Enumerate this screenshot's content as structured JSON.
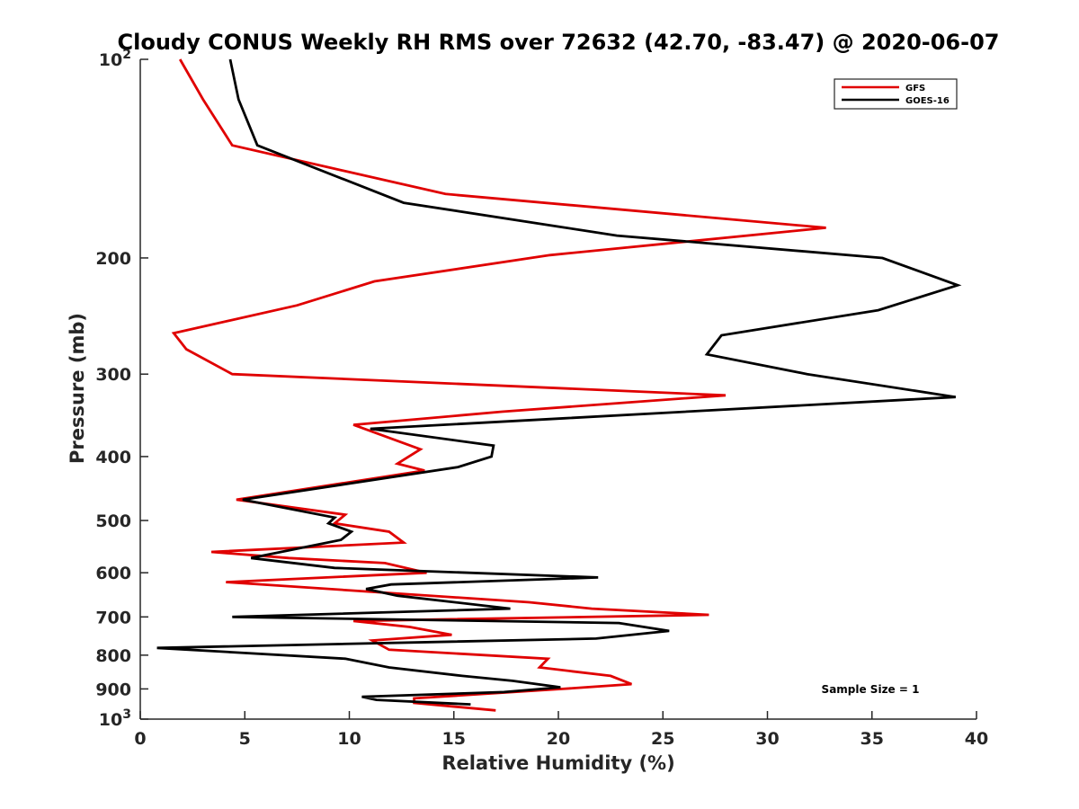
{
  "chart_data": {
    "type": "line",
    "title": "Cloudy CONUS Weekly RH RMS over 72632 (42.70, -83.47) @ 2020-06-07",
    "xlabel": "Relative Humidity (%)",
    "ylabel": "Pressure (mb)",
    "xlim": [
      0,
      40
    ],
    "ylim": [
      100,
      1000
    ],
    "yscale": "log",
    "y_reversed": true,
    "xticks": [
      0,
      5,
      10,
      15,
      20,
      25,
      30,
      35,
      40
    ],
    "yticks": [
      {
        "value": 100,
        "label": "10",
        "sup": "2"
      },
      {
        "value": 200,
        "label": "200",
        "sup": ""
      },
      {
        "value": 300,
        "label": "300",
        "sup": ""
      },
      {
        "value": 400,
        "label": "400",
        "sup": ""
      },
      {
        "value": 500,
        "label": "500",
        "sup": ""
      },
      {
        "value": 600,
        "label": "600",
        "sup": ""
      },
      {
        "value": 700,
        "label": "700",
        "sup": ""
      },
      {
        "value": 800,
        "label": "800",
        "sup": ""
      },
      {
        "value": 900,
        "label": "900",
        "sup": ""
      },
      {
        "value": 1000,
        "label": "10",
        "sup": "3"
      }
    ],
    "legend_position": "top-right",
    "annotation": "Sample Size = 1",
    "series": [
      {
        "name": "GFS",
        "color": "#e00000",
        "points": [
          [
            1.9,
            100
          ],
          [
            3.0,
            115
          ],
          [
            4.4,
            135
          ],
          [
            14.6,
            160
          ],
          [
            32.8,
            180
          ],
          [
            19.6,
            198
          ],
          [
            11.2,
            217
          ],
          [
            7.5,
            236
          ],
          [
            1.6,
            260
          ],
          [
            2.2,
            275
          ],
          [
            4.4,
            300
          ],
          [
            28.0,
            323
          ],
          [
            17.3,
            342
          ],
          [
            10.2,
            358
          ],
          [
            13.4,
            390
          ],
          [
            12.3,
            410
          ],
          [
            13.6,
            420
          ],
          [
            4.6,
            465
          ],
          [
            9.8,
            490
          ],
          [
            9.3,
            505
          ],
          [
            11.9,
            520
          ],
          [
            12.6,
            540
          ],
          [
            3.4,
            558
          ],
          [
            7.1,
            570
          ],
          [
            11.7,
            580
          ],
          [
            13.7,
            600
          ],
          [
            4.1,
            620
          ],
          [
            18.6,
            665
          ],
          [
            21.6,
            680
          ],
          [
            27.2,
            695
          ],
          [
            10.2,
            710
          ],
          [
            12.9,
            725
          ],
          [
            14.9,
            745
          ],
          [
            11.1,
            760
          ],
          [
            11.9,
            785
          ],
          [
            19.5,
            810
          ],
          [
            19.1,
            835
          ],
          [
            22.5,
            860
          ],
          [
            23.5,
            885
          ],
          [
            20.2,
            900
          ],
          [
            13.1,
            930
          ],
          [
            13.1,
            945
          ],
          [
            17.0,
            970
          ]
        ]
      },
      {
        "name": "GOES-16",
        "color": "#000000",
        "points": [
          [
            4.3,
            100
          ],
          [
            4.7,
            115
          ],
          [
            5.6,
            135
          ],
          [
            12.6,
            165
          ],
          [
            22.8,
            185
          ],
          [
            35.5,
            200
          ],
          [
            39.1,
            220
          ],
          [
            35.3,
            240
          ],
          [
            27.8,
            262
          ],
          [
            27.1,
            280
          ],
          [
            31.9,
            300
          ],
          [
            39.0,
            325
          ],
          [
            20.3,
            350
          ],
          [
            11.0,
            363
          ],
          [
            16.9,
            385
          ],
          [
            16.8,
            400
          ],
          [
            15.2,
            415
          ],
          [
            4.9,
            465
          ],
          [
            9.3,
            495
          ],
          [
            9.0,
            505
          ],
          [
            10.1,
            520
          ],
          [
            9.6,
            535
          ],
          [
            5.3,
            570
          ],
          [
            9.3,
            590
          ],
          [
            21.9,
            610
          ],
          [
            12.0,
            625
          ],
          [
            10.8,
            635
          ],
          [
            12.3,
            650
          ],
          [
            17.7,
            680
          ],
          [
            4.4,
            700
          ],
          [
            22.9,
            715
          ],
          [
            25.3,
            735
          ],
          [
            21.8,
            755
          ],
          [
            0.8,
            780
          ],
          [
            9.8,
            810
          ],
          [
            11.9,
            835
          ],
          [
            15.4,
            860
          ],
          [
            17.8,
            875
          ],
          [
            20.1,
            895
          ],
          [
            17.4,
            910
          ],
          [
            10.6,
            925
          ],
          [
            11.3,
            935
          ],
          [
            15.8,
            950
          ]
        ]
      }
    ]
  }
}
